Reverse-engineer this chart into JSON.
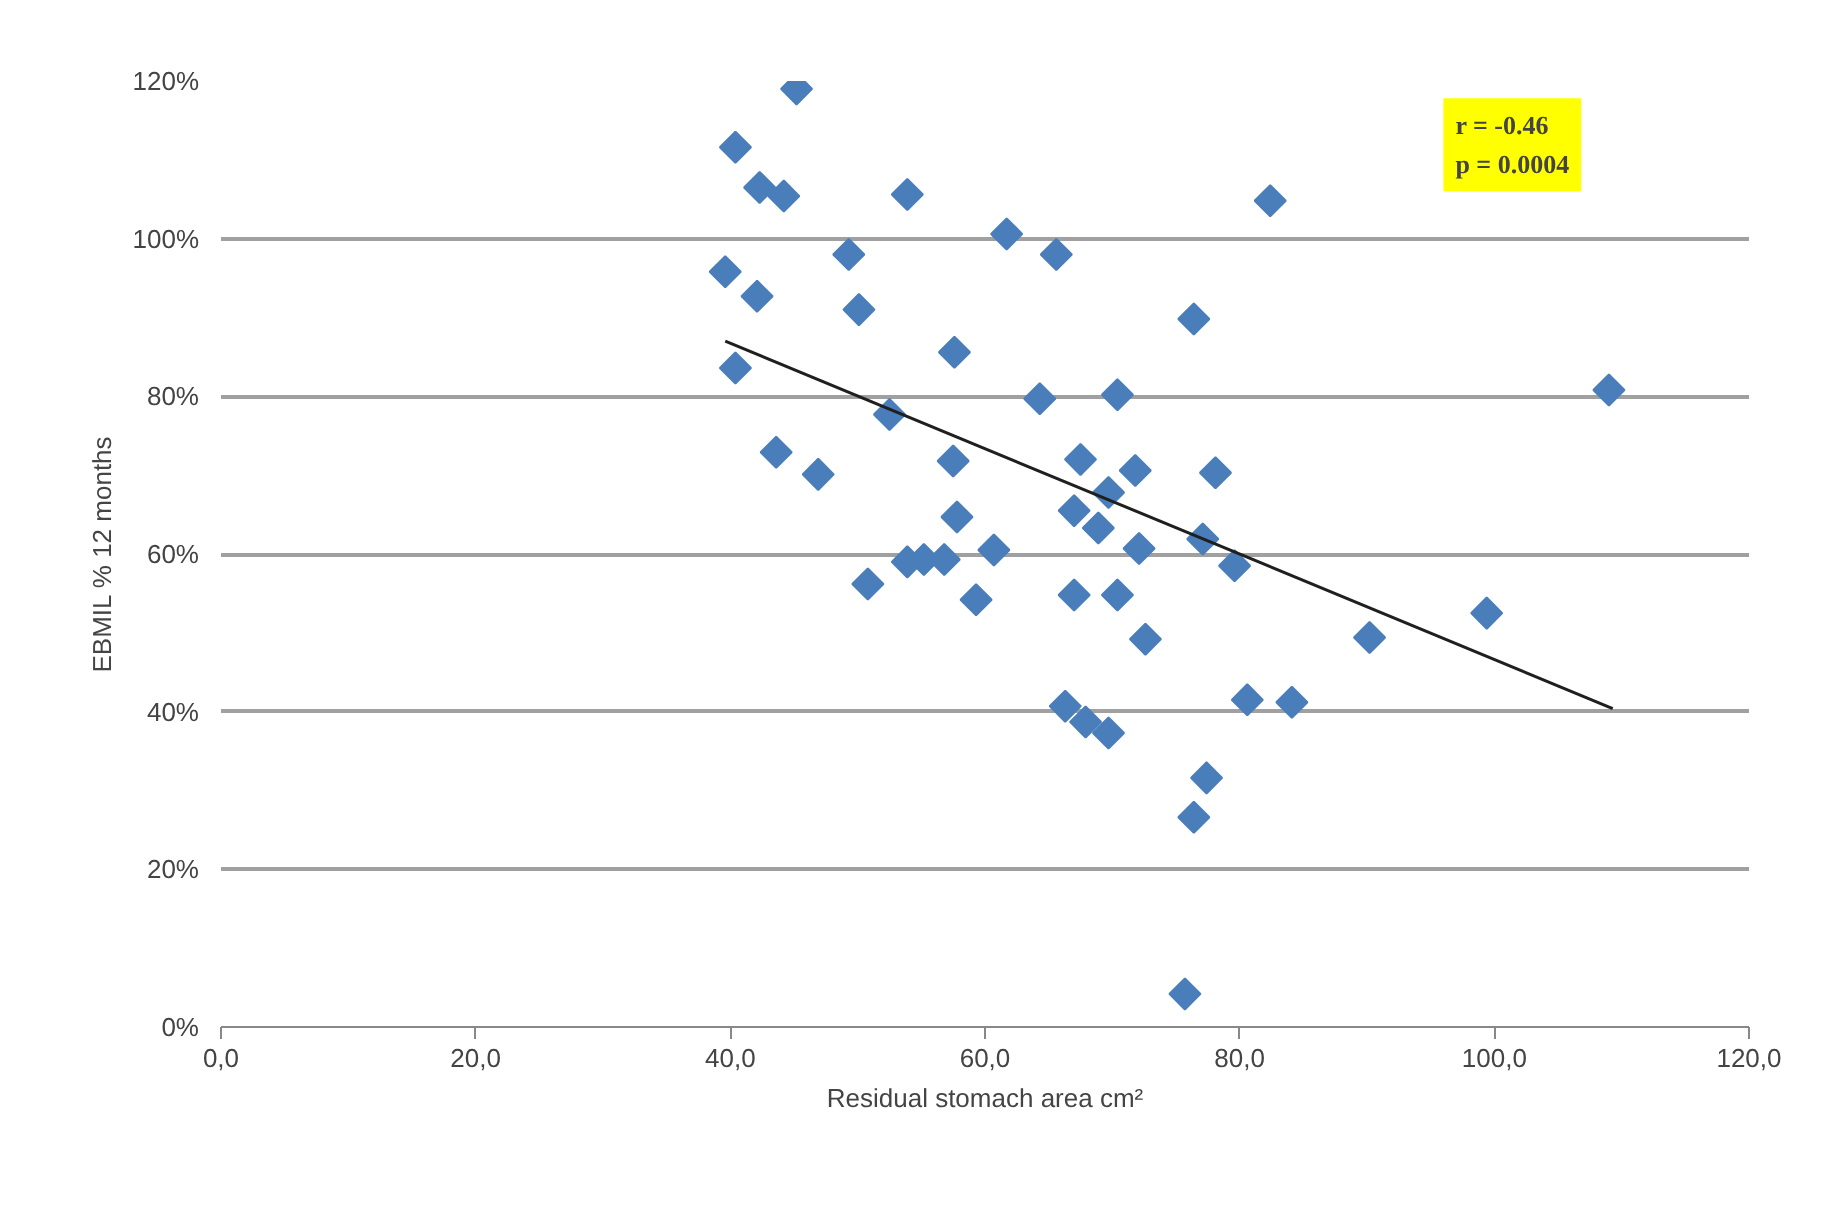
{
  "chart_data": {
    "type": "scatter",
    "xlabel": "Residual stomach area cm²",
    "ylabel": "EBMIL % 12 months",
    "annotations": [
      "r = -0.46\np = 0.0004"
    ],
    "xlim": [
      0,
      120
    ],
    "ylim": [
      0,
      120
    ],
    "xticks": [
      {
        "value": 0,
        "label": "0,0"
      },
      {
        "value": 20,
        "label": "20,0"
      },
      {
        "value": 40,
        "label": "40,0"
      },
      {
        "value": 60,
        "label": "60,0"
      },
      {
        "value": 80,
        "label": "80,0"
      },
      {
        "value": 100,
        "label": "100,0"
      },
      {
        "value": 120,
        "label": "120,0"
      }
    ],
    "yticks": [
      {
        "value": 0,
        "label": "0%"
      },
      {
        "value": 20,
        "label": "20%"
      },
      {
        "value": 40,
        "label": "40%"
      },
      {
        "value": 60,
        "label": "60%"
      },
      {
        "value": 80,
        "label": "80%"
      },
      {
        "value": 100,
        "label": "100%"
      },
      {
        "value": 120,
        "label": "120%"
      }
    ],
    "grid": "y",
    "series": [
      {
        "marker": "diamond",
        "color": "#4a7ebb",
        "x": [
          45.2,
          40.4,
          42.3,
          44.2,
          53.9,
          61.7,
          65.6,
          49.3,
          39.6,
          42.1,
          50.1,
          76.4,
          57.6,
          40.4,
          52.5,
          64.3,
          70.4,
          43.6,
          46.9,
          57.5,
          67.5,
          71.8,
          69.7,
          67.0,
          68.9,
          72.1,
          57.8,
          60.7,
          50.8,
          53.9,
          55.2,
          56.8,
          59.3,
          67.0,
          70.4,
          72.6,
          66.3,
          67.9,
          69.7,
          77.4,
          76.4,
          75.7,
          82.4,
          109.0,
          78.1,
          77.1,
          79.6,
          90.2,
          99.4,
          80.6,
          84.1
        ],
        "values": [
          119,
          111.6,
          106.5,
          105.4,
          105.6,
          100.6,
          98.0,
          98.0,
          95.8,
          92.7,
          91.0,
          89.8,
          85.6,
          83.6,
          77.7,
          79.7,
          80.2,
          72.9,
          70.1,
          71.8,
          72.0,
          70.6,
          67.8,
          65.5,
          63.3,
          60.7,
          64.7,
          60.5,
          56.2,
          59.0,
          59.3,
          59.3,
          54.2,
          54.8,
          54.8,
          49.2,
          40.7,
          38.7,
          37.3,
          31.6,
          26.6,
          4.2,
          104.8,
          80.8,
          70.3,
          61.9,
          58.5,
          49.4,
          52.5,
          41.5,
          41.2
        ]
      },
      {
        "type": "line",
        "marker": "none",
        "color": "#1f1f1f",
        "x": [
          39.6,
          109.3
        ],
        "values": [
          87.0,
          40.4
        ]
      }
    ]
  }
}
